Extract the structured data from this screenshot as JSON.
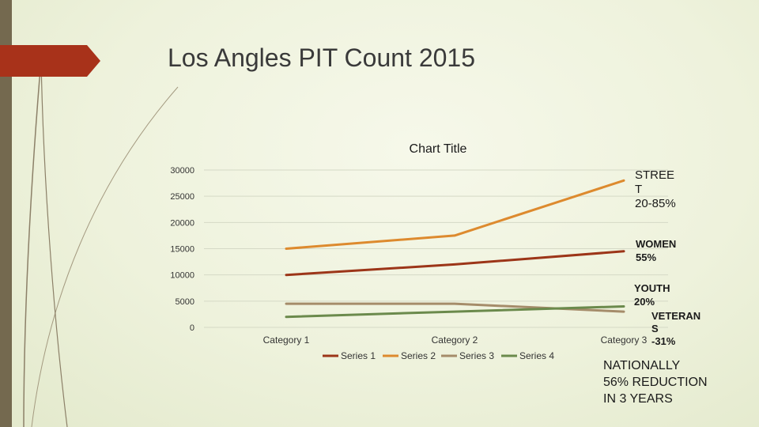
{
  "slide": {
    "title": "Los Angles PIT Count 2015"
  },
  "colors": {
    "left_bar": "#74694f",
    "title_tab": "#a8321a",
    "series1": "#9c3518",
    "series2": "#dd8a2e",
    "series3": "#a58c6a",
    "series4": "#6b8a4c",
    "gridline": "#d5d9c6"
  },
  "chart_data": {
    "type": "line",
    "title": "Chart Title",
    "categories": [
      "Category 1",
      "Category 2",
      "Category 3"
    ],
    "series": [
      {
        "name": "Series 1",
        "values": [
          10000,
          12000,
          14500
        ]
      },
      {
        "name": "Series 2",
        "values": [
          15000,
          17500,
          28000
        ]
      },
      {
        "name": "Series 3",
        "values": [
          4500,
          4500,
          3000
        ]
      },
      {
        "name": "Series 4",
        "values": [
          2000,
          3000,
          4000
        ]
      }
    ],
    "yticks": [
      0,
      5000,
      10000,
      15000,
      20000,
      25000,
      30000
    ],
    "ylim": [
      0,
      30000
    ],
    "grid": true,
    "legend": "bottom"
  },
  "annotations": {
    "street": "STREE\nT\n20-85%",
    "women": "WOMEN\n55%",
    "youth": "YOUTH\n20%",
    "veteran": "VETERAN\nS\n-31%",
    "nationally": "NATIONALLY\n56% REDUCTION\nIN 3 YEARS"
  }
}
